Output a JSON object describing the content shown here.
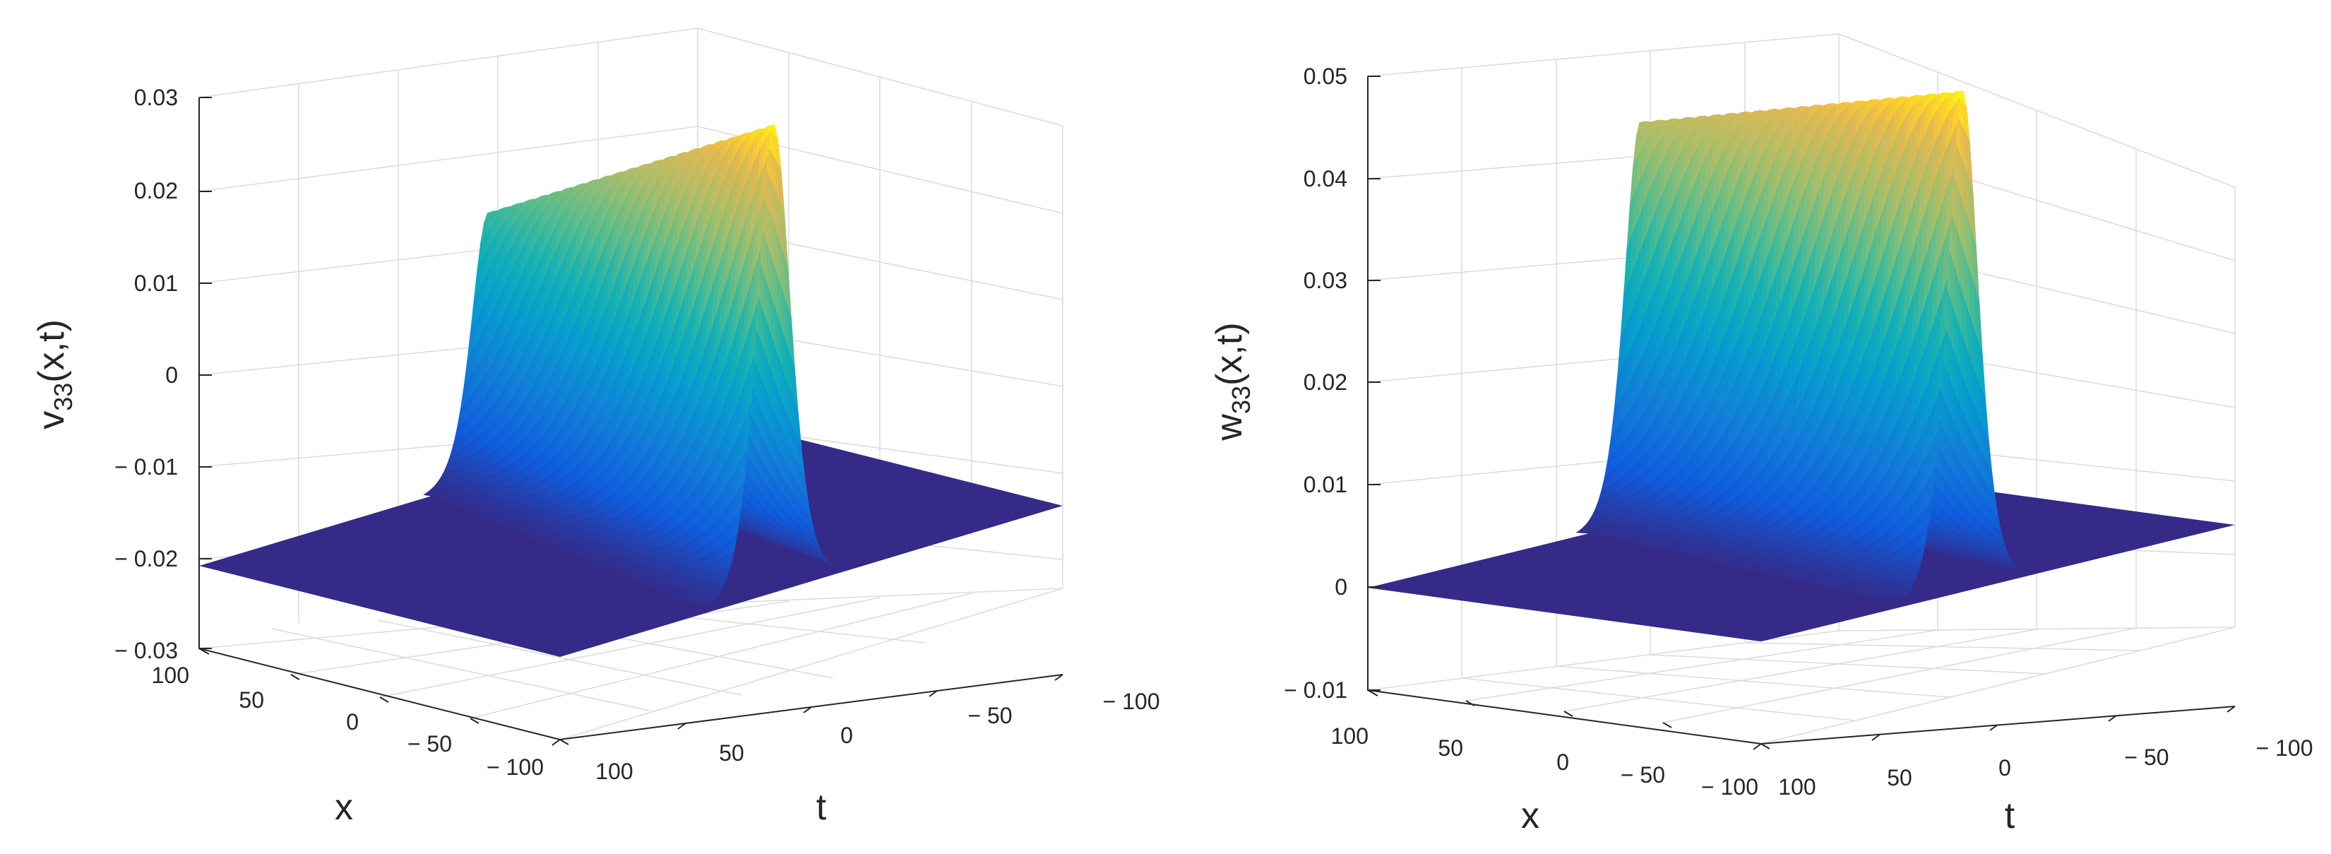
{
  "chart_data": [
    {
      "type": "surface",
      "title": "",
      "xlabel": "x",
      "ylabel": "t",
      "zlabel_main": "v",
      "zlabel_sub": "33",
      "zlabel_rest": "(x,t)",
      "xlim": [
        -100,
        100
      ],
      "ylim": [
        -100,
        100
      ],
      "zlim": [
        -0.03,
        0.03
      ],
      "x_ticks": [
        "100",
        "50",
        "0",
        "− 50",
        "− 100"
      ],
      "y_ticks": [
        "100",
        "50",
        "0",
        "− 50",
        "− 100"
      ],
      "z_ticks": [
        "0.03",
        "0.02",
        "0.01",
        "0",
        "− 0.01",
        "− 0.02",
        "− 0.03"
      ],
      "grid": true,
      "colormap": "parula",
      "surface": {
        "baseline": -0.021,
        "peak": 0.03,
        "peak_at": -0.026,
        "front_peak": 0.008,
        "width": 9,
        "t_center": 0
      }
    },
    {
      "type": "surface",
      "title": "",
      "xlabel": "x",
      "ylabel": "t",
      "zlabel_main": "w",
      "zlabel_sub": "33",
      "zlabel_rest": "(x,t)",
      "xlim": [
        -100,
        100
      ],
      "ylim": [
        -100,
        100
      ],
      "zlim": [
        -0.01,
        0.05
      ],
      "x_ticks": [
        "100",
        "50",
        "0",
        "− 50",
        "− 100"
      ],
      "y_ticks": [
        "100",
        "50",
        "0",
        "− 50",
        "− 100"
      ],
      "z_ticks": [
        "0.05",
        "0.04",
        "0.03",
        "0.02",
        "0.01",
        "0",
        "− 0.01"
      ],
      "grid": true,
      "colormap": "parula",
      "surface": {
        "baseline": 0,
        "peak": 0.049,
        "peak_at": -0.026,
        "front_peak": 0.039,
        "width": 9,
        "t_center": 0
      }
    }
  ]
}
